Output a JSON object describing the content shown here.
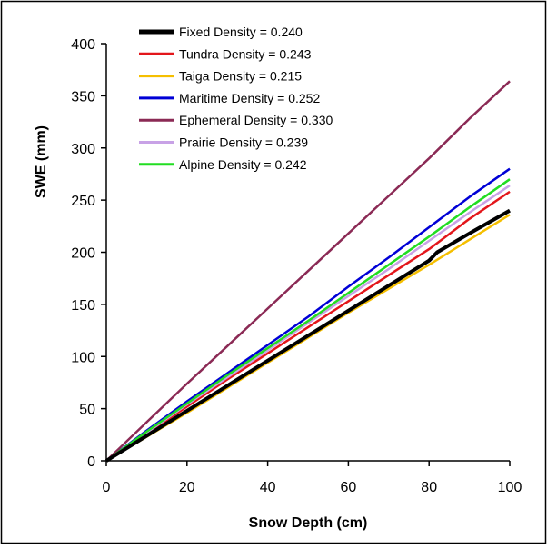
{
  "chart_data": {
    "type": "line",
    "title": "",
    "xlabel": "Snow Depth (cm)",
    "ylabel": "SWE (mm)",
    "xlim": [
      0,
      100
    ],
    "ylim": [
      0,
      400
    ],
    "xticks": [
      0,
      20,
      40,
      60,
      80,
      100
    ],
    "yticks": [
      0,
      50,
      100,
      150,
      200,
      250,
      300,
      350,
      400
    ],
    "grid": false,
    "legend_position": "top-left",
    "series": [
      {
        "name": "Fixed Density = 0.240",
        "color": "#000000",
        "x": [
          0,
          10,
          20,
          30,
          40,
          50,
          60,
          70,
          80,
          82,
          90,
          100
        ],
        "y": [
          0,
          24,
          48,
          72,
          96,
          120,
          144,
          168,
          192,
          200,
          218,
          240
        ]
      },
      {
        "name": "Tundra Density = 0.243",
        "color": "#e3161b",
        "x": [
          0,
          10,
          20,
          30,
          40,
          50,
          60,
          70,
          80,
          90,
          100
        ],
        "y": [
          0,
          26,
          52,
          78,
          103,
          128,
          153,
          178,
          203,
          232,
          258
        ]
      },
      {
        "name": "Taiga Density = 0.215",
        "color": "#f5bf00",
        "x": [
          0,
          10,
          20,
          30,
          40,
          50,
          60,
          70,
          80,
          90,
          100
        ],
        "y": [
          0,
          23,
          46,
          70,
          94,
          118,
          142,
          165,
          188,
          212,
          236
        ]
      },
      {
        "name": "Maritime Density = 0.252",
        "color": "#0000d6",
        "x": [
          0,
          10,
          20,
          30,
          40,
          50,
          60,
          70,
          80,
          90,
          100
        ],
        "y": [
          0,
          29,
          57,
          84,
          111,
          138,
          167,
          195,
          224,
          253,
          280
        ]
      },
      {
        "name": "Ephemeral Density = 0.330",
        "color": "#8b2a55",
        "x": [
          0,
          10,
          20,
          30,
          40,
          50,
          60,
          70,
          80,
          90,
          100
        ],
        "y": [
          0,
          37,
          74,
          110,
          146,
          182,
          218,
          254,
          290,
          328,
          364
        ]
      },
      {
        "name": "Prairie Density = 0.239",
        "color": "#c8a2e6",
        "x": [
          0,
          10,
          20,
          30,
          40,
          50,
          60,
          70,
          80,
          90,
          100
        ],
        "y": [
          0,
          27,
          54,
          80,
          106,
          132,
          158,
          184,
          211,
          238,
          264
        ]
      },
      {
        "name": "Alpine Density = 0.242",
        "color": "#22dd22",
        "x": [
          0,
          10,
          20,
          30,
          40,
          50,
          60,
          70,
          80,
          90,
          100
        ],
        "y": [
          0,
          28,
          55,
          82,
          108,
          134,
          161,
          188,
          215,
          243,
          270
        ]
      }
    ]
  }
}
